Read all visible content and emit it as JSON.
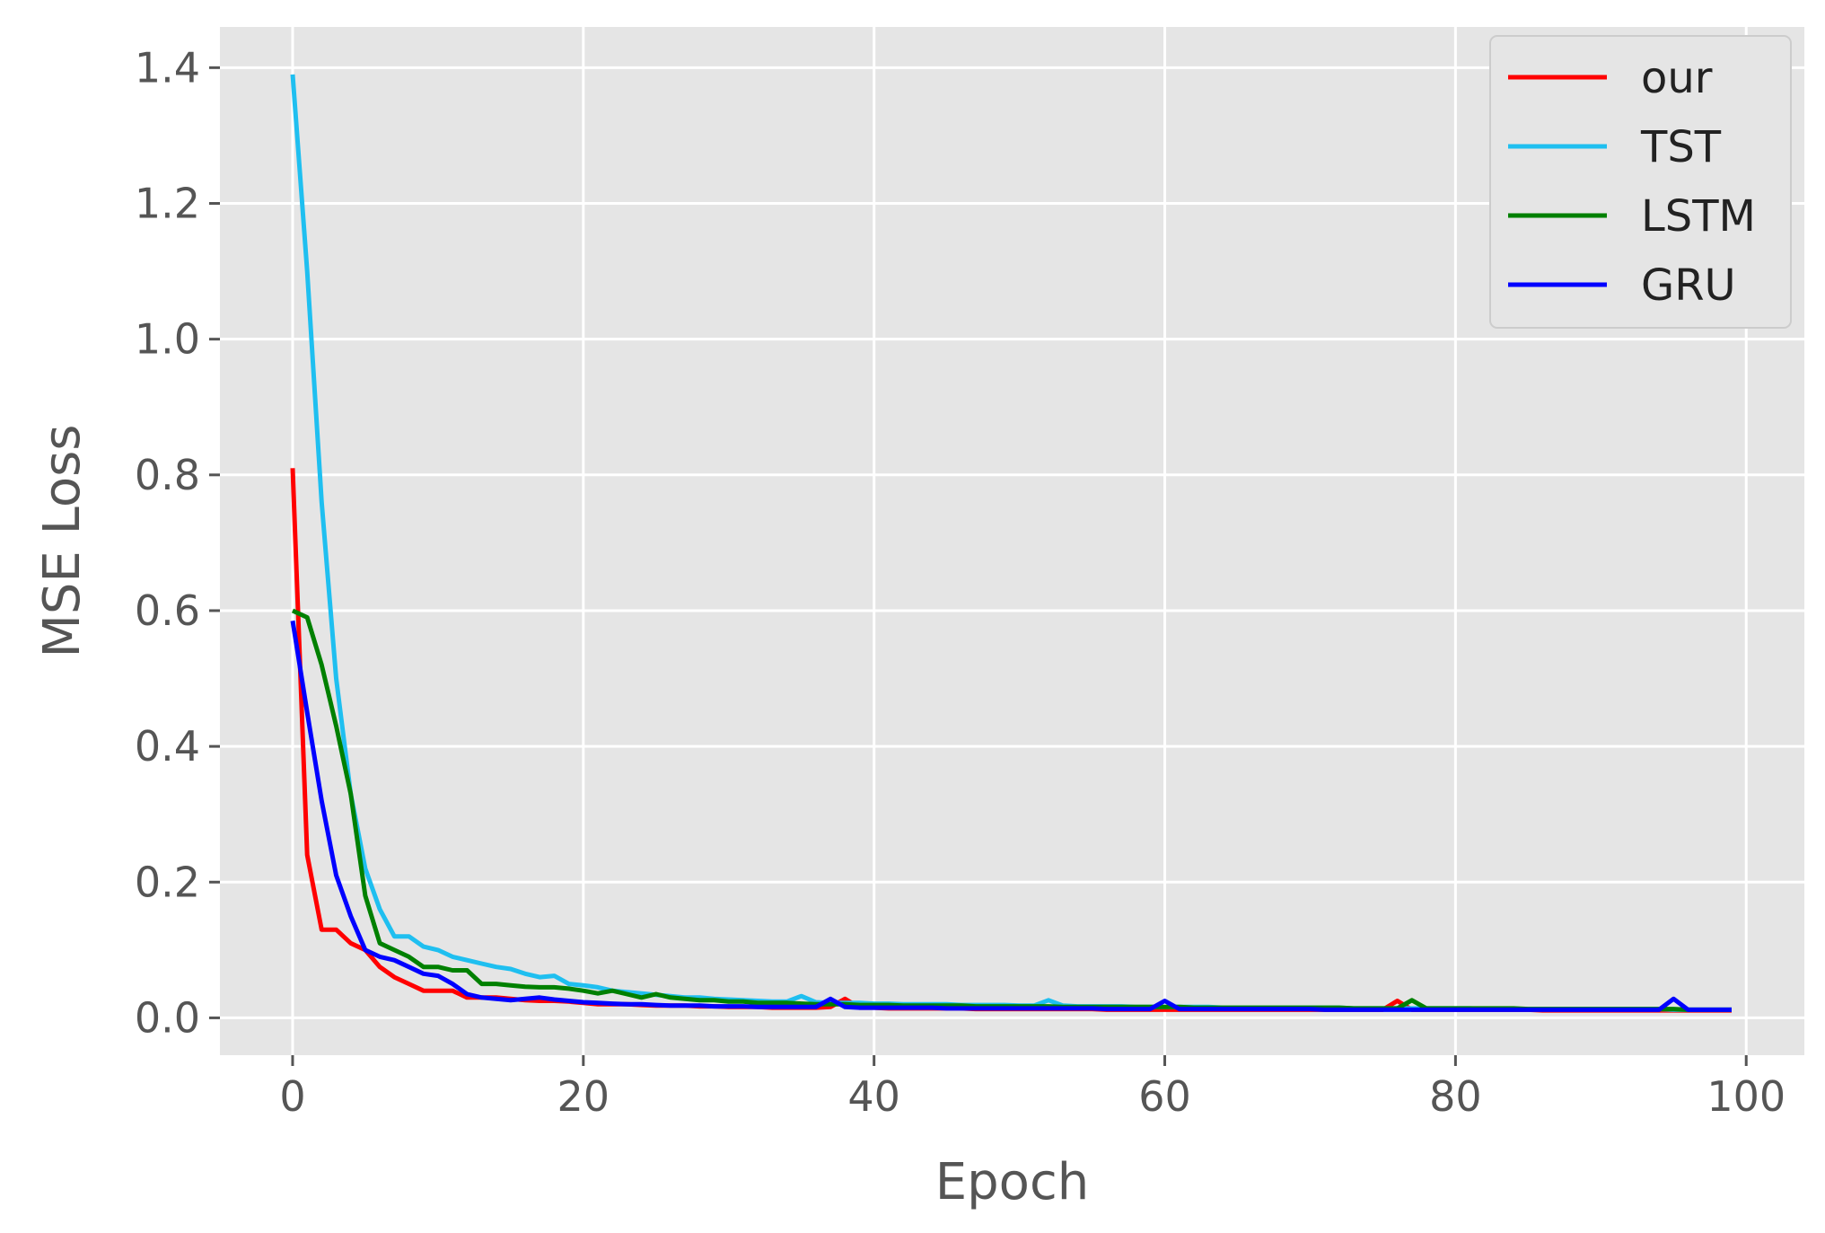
{
  "chart_data": {
    "type": "line",
    "title": "",
    "xlabel": "Epoch",
    "ylabel": "MSE Loss",
    "xlim": [
      -5,
      104
    ],
    "ylim": [
      -0.055,
      1.46
    ],
    "x_ticks": [
      0,
      20,
      40,
      60,
      80,
      100
    ],
    "y_ticks": [
      0.0,
      0.2,
      0.4,
      0.6,
      0.8,
      1.0,
      1.2,
      1.4
    ],
    "x_tick_labels": [
      "0",
      "20",
      "40",
      "60",
      "80",
      "100"
    ],
    "y_tick_labels": [
      "0.0",
      "0.2",
      "0.4",
      "0.6",
      "0.8",
      "1.0",
      "1.2",
      "1.4"
    ],
    "grid": true,
    "background": "#e5e5e5",
    "legend_position": "top-right",
    "x": [
      0,
      1,
      2,
      3,
      4,
      5,
      6,
      7,
      8,
      9,
      10,
      11,
      12,
      13,
      14,
      15,
      16,
      17,
      18,
      19,
      20,
      21,
      22,
      23,
      24,
      25,
      26,
      27,
      28,
      29,
      30,
      31,
      32,
      33,
      34,
      35,
      36,
      37,
      38,
      39,
      40,
      41,
      42,
      43,
      44,
      45,
      46,
      47,
      48,
      49,
      50,
      51,
      52,
      53,
      54,
      55,
      56,
      57,
      58,
      59,
      60,
      61,
      62,
      63,
      64,
      65,
      66,
      67,
      68,
      69,
      70,
      71,
      72,
      73,
      74,
      75,
      76,
      77,
      78,
      79,
      80,
      81,
      82,
      83,
      84,
      85,
      86,
      87,
      88,
      89,
      90,
      91,
      92,
      93,
      94,
      95,
      96,
      97,
      98,
      99
    ],
    "series": [
      {
        "name": "our",
        "color": "#ff0000",
        "values": [
          0.81,
          0.24,
          0.13,
          0.13,
          0.11,
          0.1,
          0.075,
          0.06,
          0.05,
          0.04,
          0.04,
          0.04,
          0.03,
          0.03,
          0.03,
          0.028,
          0.026,
          0.025,
          0.025,
          0.024,
          0.022,
          0.02,
          0.02,
          0.02,
          0.019,
          0.018,
          0.018,
          0.018,
          0.017,
          0.017,
          0.016,
          0.016,
          0.016,
          0.015,
          0.015,
          0.015,
          0.015,
          0.016,
          0.028,
          0.015,
          0.015,
          0.014,
          0.014,
          0.014,
          0.014,
          0.014,
          0.014,
          0.013,
          0.013,
          0.013,
          0.013,
          0.013,
          0.013,
          0.013,
          0.013,
          0.013,
          0.012,
          0.012,
          0.012,
          0.012,
          0.012,
          0.012,
          0.012,
          0.012,
          0.012,
          0.012,
          0.012,
          0.012,
          0.012,
          0.012,
          0.012,
          0.012,
          0.012,
          0.012,
          0.012,
          0.012,
          0.025,
          0.012,
          0.012,
          0.012,
          0.012,
          0.012,
          0.012,
          0.012,
          0.012,
          0.012,
          0.011,
          0.011,
          0.011,
          0.011,
          0.011,
          0.011,
          0.011,
          0.011,
          0.011,
          0.011,
          0.011,
          0.011,
          0.011,
          0.011
        ]
      },
      {
        "name": "TST",
        "color": "#1fbff0",
        "values": [
          1.39,
          1.1,
          0.76,
          0.5,
          0.33,
          0.22,
          0.16,
          0.12,
          0.12,
          0.105,
          0.1,
          0.09,
          0.085,
          0.08,
          0.075,
          0.072,
          0.065,
          0.06,
          0.062,
          0.05,
          0.048,
          0.045,
          0.04,
          0.038,
          0.036,
          0.034,
          0.032,
          0.03,
          0.03,
          0.028,
          0.027,
          0.026,
          0.025,
          0.024,
          0.024,
          0.032,
          0.023,
          0.022,
          0.022,
          0.022,
          0.021,
          0.021,
          0.02,
          0.02,
          0.02,
          0.02,
          0.019,
          0.019,
          0.019,
          0.019,
          0.018,
          0.018,
          0.026,
          0.018,
          0.017,
          0.017,
          0.017,
          0.017,
          0.016,
          0.016,
          0.016,
          0.016,
          0.016,
          0.016,
          0.015,
          0.015,
          0.015,
          0.015,
          0.015,
          0.015,
          0.015,
          0.015,
          0.015,
          0.014,
          0.014,
          0.014,
          0.014,
          0.014,
          0.014,
          0.014,
          0.014,
          0.014,
          0.013,
          0.013,
          0.013,
          0.013,
          0.013,
          0.013,
          0.013,
          0.013,
          0.013,
          0.013,
          0.013,
          0.013,
          0.013,
          0.012,
          0.012,
          0.012,
          0.012,
          0.012
        ]
      },
      {
        "name": "LSTM",
        "color": "#008000",
        "values": [
          0.6,
          0.59,
          0.52,
          0.43,
          0.33,
          0.18,
          0.11,
          0.1,
          0.09,
          0.075,
          0.075,
          0.07,
          0.07,
          0.05,
          0.05,
          0.048,
          0.046,
          0.045,
          0.045,
          0.043,
          0.04,
          0.036,
          0.04,
          0.035,
          0.03,
          0.035,
          0.03,
          0.028,
          0.026,
          0.026,
          0.024,
          0.024,
          0.022,
          0.022,
          0.022,
          0.021,
          0.02,
          0.02,
          0.02,
          0.019,
          0.019,
          0.019,
          0.018,
          0.018,
          0.018,
          0.018,
          0.018,
          0.017,
          0.017,
          0.017,
          0.017,
          0.017,
          0.017,
          0.016,
          0.016,
          0.016,
          0.016,
          0.016,
          0.016,
          0.016,
          0.016,
          0.016,
          0.015,
          0.015,
          0.015,
          0.015,
          0.015,
          0.015,
          0.015,
          0.015,
          0.015,
          0.015,
          0.015,
          0.014,
          0.014,
          0.014,
          0.014,
          0.026,
          0.014,
          0.014,
          0.014,
          0.014,
          0.014,
          0.014,
          0.014,
          0.013,
          0.013,
          0.013,
          0.013,
          0.013,
          0.013,
          0.013,
          0.013,
          0.013,
          0.013,
          0.013,
          0.012,
          0.012,
          0.012,
          0.012
        ]
      },
      {
        "name": "GRU",
        "color": "#0000ff",
        "values": [
          0.585,
          0.45,
          0.32,
          0.21,
          0.15,
          0.1,
          0.09,
          0.085,
          0.075,
          0.065,
          0.062,
          0.05,
          0.035,
          0.03,
          0.028,
          0.026,
          0.028,
          0.03,
          0.027,
          0.025,
          0.023,
          0.022,
          0.021,
          0.02,
          0.02,
          0.019,
          0.018,
          0.018,
          0.018,
          0.017,
          0.017,
          0.017,
          0.016,
          0.016,
          0.016,
          0.016,
          0.016,
          0.028,
          0.016,
          0.015,
          0.015,
          0.015,
          0.015,
          0.015,
          0.015,
          0.014,
          0.014,
          0.014,
          0.014,
          0.014,
          0.014,
          0.014,
          0.014,
          0.014,
          0.014,
          0.014,
          0.013,
          0.013,
          0.013,
          0.013,
          0.025,
          0.013,
          0.013,
          0.013,
          0.013,
          0.013,
          0.013,
          0.013,
          0.013,
          0.013,
          0.013,
          0.012,
          0.012,
          0.012,
          0.012,
          0.012,
          0.012,
          0.012,
          0.012,
          0.012,
          0.012,
          0.012,
          0.012,
          0.012,
          0.012,
          0.012,
          0.012,
          0.012,
          0.012,
          0.012,
          0.012,
          0.012,
          0.012,
          0.012,
          0.012,
          0.028,
          0.012,
          0.012,
          0.012,
          0.012
        ]
      }
    ]
  }
}
